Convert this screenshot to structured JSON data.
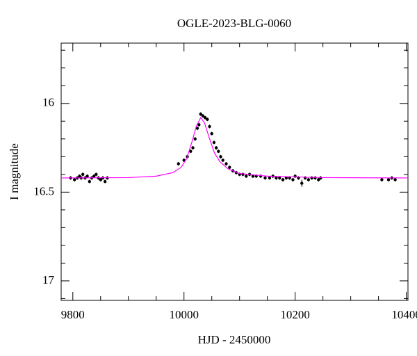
{
  "chart_data": {
    "type": "scatter",
    "title": "OGLE-2023-BLG-0060",
    "x_label": "HJD - 2450000",
    "y_label": "I magnitude",
    "xlim": [
      9779,
      10403
    ],
    "ylim": [
      17.11,
      15.66
    ],
    "xticks": [
      9800,
      10000,
      10200,
      10400
    ],
    "xticks_minor": [
      9850,
      9900,
      9950,
      10050,
      10100,
      10150,
      10250,
      10300,
      10350
    ],
    "yticks": [
      16,
      16.5,
      17
    ],
    "yticks_minor": [
      15.7,
      15.8,
      15.9,
      16.1,
      16.2,
      16.3,
      16.4,
      16.6,
      16.7,
      16.8,
      16.9,
      17.1
    ],
    "series": [
      {
        "color": "#000000",
        "x": [
          9796,
          9803,
          9808,
          9812,
          9815,
          9818,
          9822,
          9826,
          9830,
          9834,
          9838,
          9842,
          9846,
          9850,
          9854,
          9858,
          9862,
          9990,
          10000,
          10006,
          10012,
          10016,
          10020,
          10024,
          10027,
          10030,
          10034,
          10038,
          10042,
          10046,
          10050,
          10054,
          10058,
          10062,
          10066,
          10070,
          10076,
          10082,
          10088,
          10094,
          10100,
          10106,
          10112,
          10118,
          10124,
          10130,
          10138,
          10146,
          10154,
          10160,
          10166,
          10172,
          10178,
          10184,
          10190,
          10196,
          10200,
          10206,
          10212,
          10218,
          10224,
          10230,
          10236,
          10242,
          10246,
          10356,
          10368,
          10374,
          10380
        ],
        "values": [
          16.42,
          16.43,
          16.42,
          16.41,
          16.42,
          16.4,
          16.42,
          16.41,
          16.44,
          16.42,
          16.41,
          16.4,
          16.42,
          16.43,
          16.42,
          16.44,
          16.42,
          16.34,
          16.32,
          16.3,
          16.27,
          16.25,
          16.2,
          16.14,
          16.12,
          16.06,
          16.07,
          16.08,
          16.09,
          16.13,
          16.17,
          16.22,
          16.25,
          16.27,
          16.3,
          16.32,
          16.34,
          16.36,
          16.38,
          16.39,
          16.4,
          16.4,
          16.41,
          16.4,
          16.41,
          16.41,
          16.41,
          16.42,
          16.42,
          16.41,
          16.42,
          16.42,
          16.43,
          16.42,
          16.42,
          16.43,
          16.41,
          16.42,
          16.45,
          16.42,
          16.43,
          16.42,
          16.42,
          16.43,
          16.42,
          16.43,
          16.43,
          16.42,
          16.43
        ],
        "errors": [
          0.01,
          0.01,
          0.01,
          0.01,
          0.01,
          0.01,
          0.01,
          0.01,
          0.01,
          0.01,
          0.01,
          0.01,
          0.01,
          0.01,
          0.01,
          0.01,
          0.01,
          0.01,
          0.01,
          0.01,
          0.01,
          0.01,
          0.01,
          0.01,
          0.01,
          0.01,
          0.01,
          0.01,
          0.01,
          0.01,
          0.01,
          0.01,
          0.01,
          0.01,
          0.01,
          0.01,
          0.01,
          0.01,
          0.01,
          0.01,
          0.01,
          0.01,
          0.01,
          0.01,
          0.01,
          0.01,
          0.01,
          0.01,
          0.01,
          0.01,
          0.01,
          0.01,
          0.01,
          0.01,
          0.01,
          0.01,
          0.01,
          0.01,
          0.02,
          0.01,
          0.01,
          0.01,
          0.01,
          0.01,
          0.01,
          0.01,
          0.01,
          0.01,
          0.01
        ]
      },
      {
        "type": "line",
        "color": "#ff00ff",
        "x": [
          9779,
          9900,
          9950,
          9980,
          9995,
          10005,
          10015,
          10022,
          10030,
          10037,
          10045,
          10055,
          10065,
          10080,
          10100,
          10150,
          10250,
          10403
        ],
        "values": [
          16.42,
          16.418,
          16.41,
          16.39,
          16.36,
          16.31,
          16.21,
          16.13,
          16.08,
          16.11,
          16.19,
          16.28,
          16.33,
          16.37,
          16.395,
          16.41,
          16.418,
          16.42
        ]
      }
    ]
  }
}
